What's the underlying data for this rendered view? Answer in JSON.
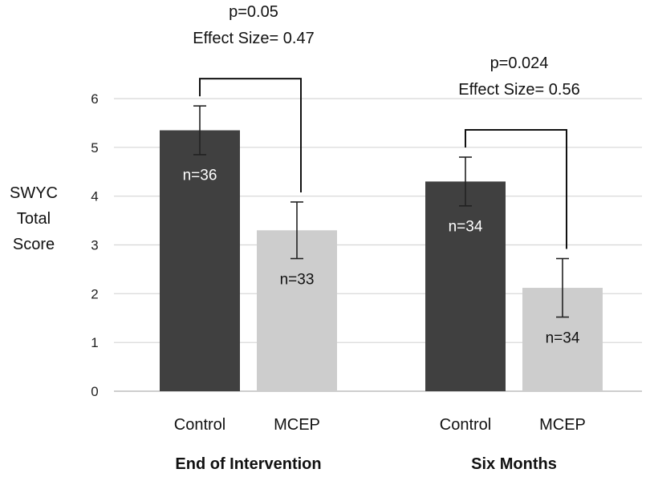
{
  "chart_data": {
    "type": "bar",
    "title": "",
    "ylabel_lines": [
      "SWYC",
      "Total",
      "Score"
    ],
    "ylim": [
      0,
      6
    ],
    "yticks": [
      0,
      1,
      2,
      3,
      4,
      5,
      6
    ],
    "grid": true,
    "groups": [
      {
        "name": "End of Intervention",
        "bars": [
          {
            "category": "Control",
            "value": 5.35,
            "error": 0.5,
            "n_label": "n=36",
            "color": "#404040",
            "label_color": "#ffffff"
          },
          {
            "category": "MCEP",
            "value": 3.3,
            "error": 0.58,
            "n_label": "n=33",
            "color": "#cdcdcd",
            "label_color": "#111111"
          }
        ],
        "annotation": {
          "p": "p=0.05",
          "effect": "Effect Size= 0.47"
        }
      },
      {
        "name": "Six Months",
        "bars": [
          {
            "category": "Control",
            "value": 4.3,
            "error": 0.5,
            "n_label": "n=34",
            "color": "#404040",
            "label_color": "#ffffff"
          },
          {
            "category": "MCEP",
            "value": 2.12,
            "error": 0.6,
            "n_label": "n=34",
            "color": "#cdcdcd",
            "label_color": "#111111"
          }
        ],
        "annotation": {
          "p": "p=0.024",
          "effect": "Effect Size= 0.56"
        }
      }
    ]
  }
}
